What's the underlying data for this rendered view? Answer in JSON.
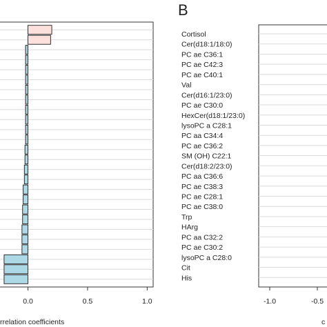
{
  "panel_b_letter": "B",
  "colors": {
    "negative_bar": "#add8e6",
    "positive_bar": "#fbe0dc",
    "bar_stroke": "#1a1a1a",
    "grid": "#d9d9d9",
    "frame": "#333333"
  },
  "chart_data": [
    {
      "type": "bar",
      "orientation": "horizontal",
      "panel": "A",
      "xlabel": "rrelation coefficients",
      "xlim": [
        -0.35,
        1.05
      ],
      "xticks": [
        "0.0",
        "0.5",
        "1.0"
      ],
      "xtick_values": [
        0.0,
        0.5,
        1.0
      ],
      "grid": true,
      "values": [
        0.2,
        0.19,
        -0.02,
        -0.02,
        -0.02,
        -0.02,
        -0.02,
        -0.02,
        -0.02,
        -0.02,
        -0.02,
        -0.02,
        -0.025,
        -0.025,
        -0.03,
        -0.03,
        -0.04,
        -0.04,
        -0.045,
        -0.045,
        -0.05,
        -0.05,
        -0.05,
        -0.2,
        -0.2,
        -0.2
      ]
    },
    {
      "type": "bar",
      "orientation": "horizontal",
      "panel": "B",
      "xlim": [
        -1.2,
        0.2
      ],
      "xticks": [
        "-1.0",
        "-0.5"
      ],
      "xtick_values": [
        -1.0,
        -0.5
      ],
      "grid": true,
      "categories": [
        "Cortisol",
        "Cer(d18:1/18:0)",
        "PC ae C36:1",
        "PC ae C42:3",
        "PC ae C40:1",
        "Val",
        "Cer(d16:1/23:0)",
        "PC ae C30:0",
        "HexCer(d18:1/23:0)",
        "lysoPC a C28:1",
        "PC aa C34:4",
        "PC ae C36:2",
        "SM (OH) C22:1",
        "Cer(d18:2/23:0)",
        "PC aa C36:6",
        "PC ae C38:3",
        "PC ae C28:1",
        "PC ae C38:0",
        "Trp",
        "HArg",
        "PC aa C32:2",
        "PC ae C30:2",
        "lysoPC a C28:0",
        "Cit",
        "His"
      ],
      "x_axis_letter_fragment": "c"
    }
  ]
}
